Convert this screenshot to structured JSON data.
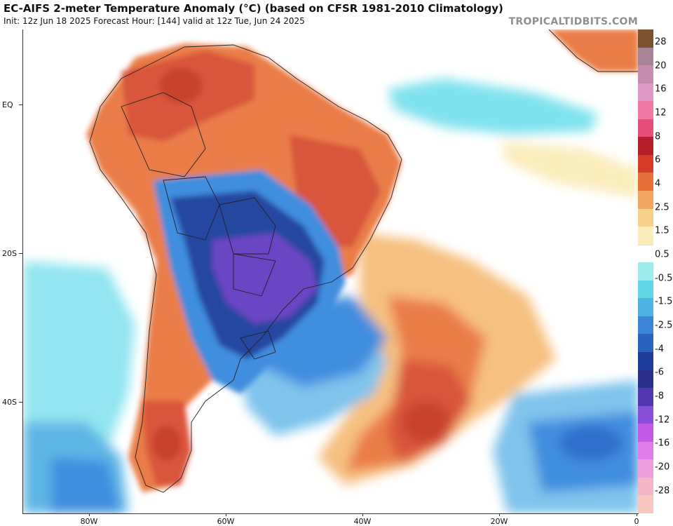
{
  "header": {
    "title": "EC-AIFS 2-meter Temperature Anomaly (°C) (based on CFSR 1981-2010 Climatology)",
    "subtitle": "Init: 12z Jun 18 2025   Forecast Hour: [144]   valid at 12z Tue, Jun 24 2025",
    "brand": "TROPICALTIDBITS.COM"
  },
  "axes": {
    "lat_labels": [
      "EQ",
      "20S",
      "40S"
    ],
    "lon_labels": [
      "80W",
      "60W",
      "40W",
      "20W",
      "0"
    ]
  },
  "legend": {
    "labels": [
      "28",
      "20",
      "16",
      "12",
      "8",
      "6",
      "4",
      "2.5",
      "1.5",
      "0.5",
      "-0.5",
      "-1.5",
      "-2.5",
      "-4",
      "-6",
      "-8",
      "-12",
      "-16",
      "-20",
      "-28"
    ],
    "colors": [
      "#7a5230",
      "#a78496",
      "#c48cae",
      "#df99c6",
      "#f07aa5",
      "#e44f7a",
      "#b51f2c",
      "#d43d2a",
      "#e8703a",
      "#f2a660",
      "#f7d08c",
      "#fbedbb",
      "#ffffff",
      "#9fecec",
      "#62d6e6",
      "#4fb3e3",
      "#3b86d8",
      "#2a63c0",
      "#1d3d98",
      "#2a2f8c",
      "#5238b0",
      "#8a4fd8",
      "#c25ae6",
      "#e07ce9",
      "#ed9fdc",
      "#f3b6c8",
      "#f8c8c0"
    ]
  },
  "colors": {
    "warm_strong": "#c9422e",
    "warm": "#ea7d47",
    "warm_light": "#f6c07f",
    "neutral": "#ffffff",
    "cool_light": "#7fe2ec",
    "cool": "#3f8ede",
    "cool_strong": "#25469f",
    "cold_extreme": "#8a4fd8"
  }
}
